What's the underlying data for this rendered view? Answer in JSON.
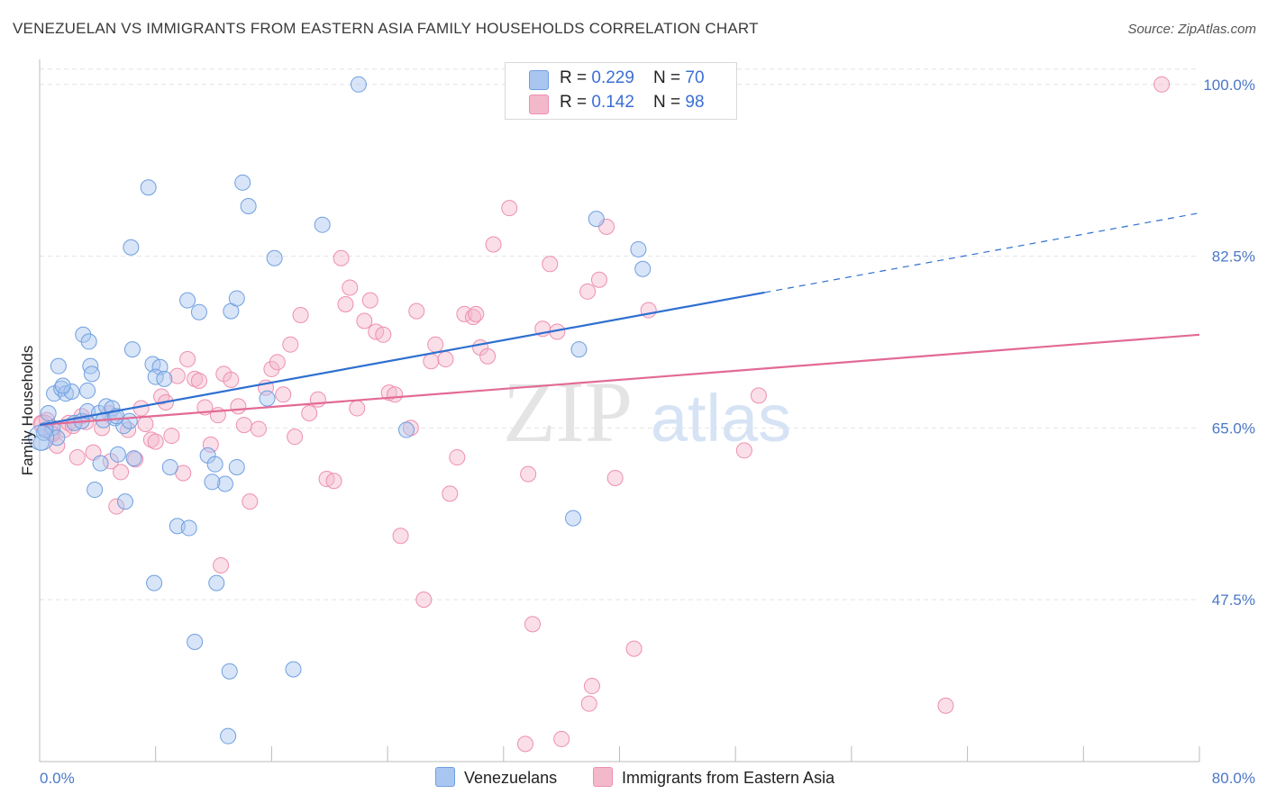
{
  "header": {
    "title": "VENEZUELAN VS IMMIGRANTS FROM EASTERN ASIA FAMILY HOUSEHOLDS CORRELATION CHART",
    "source": "Source: ZipAtlas.com"
  },
  "watermark": {
    "zip": "ZIP",
    "atlas": "atlas"
  },
  "legend": {
    "rows": [
      {
        "r_label": "R = ",
        "r_value": "0.229",
        "n_label": "N = ",
        "n_value": "70"
      },
      {
        "r_label": "R = ",
        "r_value": "0.142",
        "n_label": "N = ",
        "n_value": "98"
      }
    ]
  },
  "bottom_legend": {
    "venezuelans": "Venezuelans",
    "eastern_asia": "Immigrants from Eastern Asia"
  },
  "colors": {
    "blue_fill": "#a9c6f0",
    "blue_stroke": "#6f9fe0",
    "blue_line": "#2f6fd0",
    "pink_fill": "#f4b8cb",
    "pink_stroke": "#ee8fae",
    "pink_line": "#e26a96",
    "grid": "#e2e2e2",
    "tick_text": "#4a78c7"
  },
  "chart_data": {
    "type": "scatter",
    "title": "VENEZUELAN VS IMMIGRANTS FROM EASTERN ASIA FAMILY HOUSEHOLDS CORRELATION CHART",
    "xlabel": "",
    "ylabel": "Family Households",
    "xlim": [
      0,
      80
    ],
    "ylim": [
      31,
      102
    ],
    "x_tick_labels": [
      "0.0%",
      "80.0%"
    ],
    "y_tick_labels": [
      "100.0%",
      "82.5%",
      "65.0%",
      "47.5%"
    ],
    "y_ticks": [
      100,
      82.5,
      65,
      47.5
    ],
    "grid": true,
    "legend_position": "top-center",
    "series": [
      {
        "name": "Venezuelans",
        "r": 0.229,
        "n": 70,
        "trend": {
          "x0": 0,
          "y0": 65.3,
          "x1": 50,
          "y1": 78.8,
          "dash_to_x": 80,
          "dash_to_y": 86.9
        },
        "points": [
          [
            0.1,
            63.5
          ],
          [
            0.3,
            64.5
          ],
          [
            0.6,
            66.5
          ],
          [
            0.9,
            65.0
          ],
          [
            0.4,
            64.8
          ],
          [
            1.0,
            68.5
          ],
          [
            1.3,
            71.3
          ],
          [
            1.5,
            69.0
          ],
          [
            1.8,
            68.5
          ],
          [
            2.2,
            68.7
          ],
          [
            1.6,
            69.3
          ],
          [
            2.4,
            65.5
          ],
          [
            2.9,
            65.7
          ],
          [
            3.3,
            66.7
          ],
          [
            3.5,
            71.3
          ],
          [
            3.0,
            74.5
          ],
          [
            3.4,
            73.8
          ],
          [
            4.1,
            66.5
          ],
          [
            4.4,
            65.8
          ],
          [
            4.6,
            67.2
          ],
          [
            5.0,
            67.0
          ],
          [
            5.2,
            66.0
          ],
          [
            5.8,
            65.2
          ],
          [
            6.2,
            65.7
          ],
          [
            5.4,
            62.3
          ],
          [
            6.5,
            61.9
          ],
          [
            3.8,
            58.7
          ],
          [
            5.9,
            57.5
          ],
          [
            4.2,
            61.4
          ],
          [
            3.6,
            70.5
          ],
          [
            3.3,
            68.8
          ],
          [
            6.4,
            73.0
          ],
          [
            7.8,
            71.5
          ],
          [
            8.3,
            71.2
          ],
          [
            8.0,
            70.2
          ],
          [
            8.6,
            70.0
          ],
          [
            7.5,
            89.5
          ],
          [
            6.3,
            83.4
          ],
          [
            10.2,
            78.0
          ],
          [
            11.0,
            76.8
          ],
          [
            13.2,
            76.9
          ],
          [
            13.6,
            78.2
          ],
          [
            14.0,
            90.0
          ],
          [
            14.4,
            87.6
          ],
          [
            16.2,
            82.3
          ],
          [
            15.7,
            68.0
          ],
          [
            19.5,
            85.7
          ],
          [
            22.0,
            100.0
          ],
          [
            11.6,
            62.2
          ],
          [
            12.1,
            61.3
          ],
          [
            12.8,
            59.3
          ],
          [
            11.9,
            59.5
          ],
          [
            13.6,
            61.0
          ],
          [
            9.0,
            61.0
          ],
          [
            9.5,
            55.0
          ],
          [
            10.3,
            54.8
          ],
          [
            7.9,
            49.2
          ],
          [
            12.2,
            49.2
          ],
          [
            10.7,
            43.2
          ],
          [
            13.1,
            40.2
          ],
          [
            17.5,
            40.4
          ],
          [
            13.0,
            33.6
          ],
          [
            25.3,
            64.8
          ],
          [
            36.8,
            55.8
          ],
          [
            37.2,
            73.0
          ],
          [
            38.4,
            86.3
          ],
          [
            41.3,
            83.2
          ],
          [
            41.6,
            81.2
          ],
          [
            5.3,
            66.2
          ],
          [
            1.2,
            64.0
          ]
        ]
      },
      {
        "name": "Immigrants from Eastern Asia",
        "r": 0.142,
        "n": 98,
        "trend": {
          "x0": 0,
          "y0": 65.3,
          "x1": 80,
          "y1": 74.5
        },
        "points": [
          [
            0.1,
            65.5
          ],
          [
            0.5,
            65.8
          ],
          [
            0.8,
            64.5
          ],
          [
            1.2,
            63.2
          ],
          [
            1.7,
            64.8
          ],
          [
            2.6,
            62.0
          ],
          [
            2.0,
            65.5
          ],
          [
            2.9,
            66.2
          ],
          [
            3.2,
            65.6
          ],
          [
            3.7,
            62.5
          ],
          [
            4.3,
            65.0
          ],
          [
            4.8,
            66.5
          ],
          [
            5.3,
            57.0
          ],
          [
            5.6,
            60.5
          ],
          [
            6.1,
            64.8
          ],
          [
            6.6,
            61.8
          ],
          [
            7.0,
            67.0
          ],
          [
            7.3,
            65.4
          ],
          [
            7.7,
            63.8
          ],
          [
            8.0,
            63.6
          ],
          [
            8.4,
            68.2
          ],
          [
            8.7,
            67.6
          ],
          [
            9.1,
            64.2
          ],
          [
            9.5,
            70.3
          ],
          [
            10.2,
            72.0
          ],
          [
            10.7,
            70.0
          ],
          [
            11.0,
            69.8
          ],
          [
            11.4,
            67.1
          ],
          [
            11.8,
            63.3
          ],
          [
            12.3,
            66.3
          ],
          [
            12.7,
            70.5
          ],
          [
            13.2,
            69.9
          ],
          [
            13.7,
            67.2
          ],
          [
            14.1,
            65.3
          ],
          [
            14.5,
            57.5
          ],
          [
            15.1,
            64.9
          ],
          [
            15.6,
            69.1
          ],
          [
            16.0,
            71.0
          ],
          [
            16.4,
            71.7
          ],
          [
            16.8,
            68.4
          ],
          [
            17.3,
            73.5
          ],
          [
            17.6,
            64.1
          ],
          [
            18.0,
            76.5
          ],
          [
            18.6,
            66.5
          ],
          [
            19.2,
            67.9
          ],
          [
            19.8,
            59.8
          ],
          [
            20.3,
            59.6
          ],
          [
            20.8,
            82.3
          ],
          [
            21.1,
            77.6
          ],
          [
            21.4,
            79.3
          ],
          [
            21.9,
            67.0
          ],
          [
            22.4,
            75.9
          ],
          [
            22.8,
            78.0
          ],
          [
            23.2,
            74.8
          ],
          [
            23.7,
            74.5
          ],
          [
            24.1,
            68.6
          ],
          [
            24.5,
            68.4
          ],
          [
            24.9,
            54.0
          ],
          [
            25.6,
            65.0
          ],
          [
            26.0,
            76.9
          ],
          [
            26.5,
            47.5
          ],
          [
            27.0,
            71.8
          ],
          [
            27.3,
            73.5
          ],
          [
            28.0,
            72.0
          ],
          [
            28.3,
            58.3
          ],
          [
            28.8,
            62.0
          ],
          [
            29.3,
            76.6
          ],
          [
            29.9,
            76.3
          ],
          [
            30.1,
            76.6
          ],
          [
            30.4,
            73.2
          ],
          [
            30.9,
            72.3
          ],
          [
            31.3,
            83.7
          ],
          [
            32.4,
            87.4
          ],
          [
            33.7,
            60.3
          ],
          [
            34.0,
            45.0
          ],
          [
            34.7,
            75.1
          ],
          [
            35.2,
            81.7
          ],
          [
            35.7,
            74.8
          ],
          [
            37.9,
            36.9
          ],
          [
            38.1,
            38.7
          ],
          [
            37.8,
            78.9
          ],
          [
            38.6,
            80.1
          ],
          [
            39.1,
            85.5
          ],
          [
            39.7,
            59.9
          ],
          [
            41.0,
            42.5
          ],
          [
            42.0,
            77.0
          ],
          [
            43.4,
            100.0
          ],
          [
            48.6,
            62.7
          ],
          [
            49.6,
            68.3
          ],
          [
            62.5,
            36.7
          ],
          [
            77.4,
            100.0
          ],
          [
            33.5,
            32.8
          ],
          [
            36.0,
            33.3
          ],
          [
            12.5,
            51.0
          ],
          [
            4.9,
            61.6
          ],
          [
            9.9,
            60.4
          ],
          [
            0.9,
            64.4
          ],
          [
            2.3,
            65.2
          ]
        ]
      }
    ]
  }
}
